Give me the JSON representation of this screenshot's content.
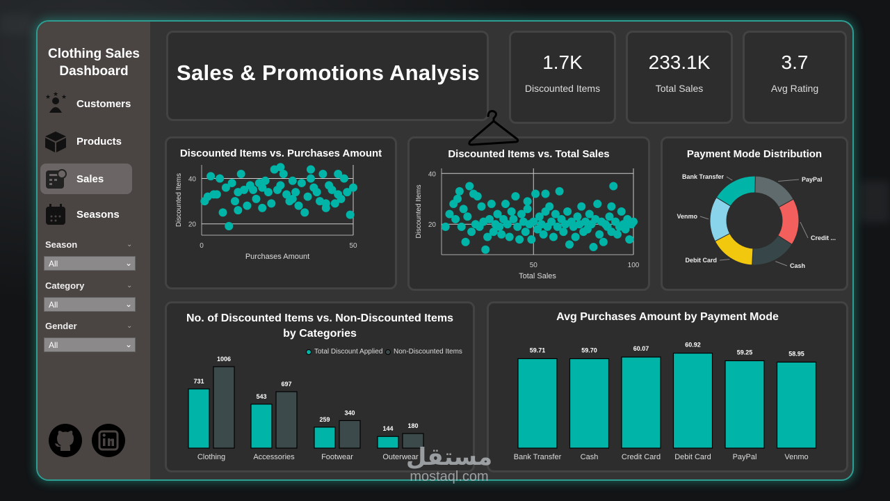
{
  "sidebar": {
    "title_line1": "Clothing Sales",
    "title_line2": "Dashboard",
    "nav": [
      {
        "label": "Customers",
        "icon": "customers-icon",
        "active": false
      },
      {
        "label": "Products",
        "icon": "box-icon",
        "active": false
      },
      {
        "label": "Sales",
        "icon": "sales-icon",
        "active": true
      },
      {
        "label": "Seasons",
        "icon": "calendar-icon",
        "active": false
      }
    ],
    "filters": [
      {
        "label": "Season",
        "value": "All"
      },
      {
        "label": "Category",
        "value": "All"
      },
      {
        "label": "Gender",
        "value": "All"
      }
    ],
    "social": [
      "github-icon",
      "linkedin-icon"
    ]
  },
  "header": {
    "title": "Sales & Promotions Analysis"
  },
  "kpis": [
    {
      "value": "1.7K",
      "label": "Discounted Items"
    },
    {
      "value": "233.1K",
      "label": "Total Sales"
    },
    {
      "value": "3.7",
      "label": "Avg Rating"
    }
  ],
  "colors": {
    "accent": "#00b5a8",
    "secondary": "#3c4a4c",
    "card": "#2d2d2d"
  },
  "chart_data": [
    {
      "type": "scatter",
      "title": "Discounted Items vs. Purchases Amount",
      "xlabel": "Purchases Amount",
      "ylabel": "Discounted Items",
      "xticks": [
        "0",
        "50"
      ],
      "yticks": [
        "20",
        "40"
      ],
      "xlim": [
        0,
        50
      ],
      "ylim": [
        15,
        46
      ],
      "points": [
        [
          1,
          30
        ],
        [
          2,
          32
        ],
        [
          3,
          41
        ],
        [
          4,
          33
        ],
        [
          5,
          33
        ],
        [
          6,
          40
        ],
        [
          7,
          25
        ],
        [
          8,
          36
        ],
        [
          9,
          19
        ],
        [
          10,
          38
        ],
        [
          11,
          30
        ],
        [
          12,
          34
        ],
        [
          13,
          42
        ],
        [
          14,
          35
        ],
        [
          15,
          28
        ],
        [
          16,
          37
        ],
        [
          17,
          35
        ],
        [
          18,
          31
        ],
        [
          19,
          38
        ],
        [
          20,
          27
        ],
        [
          21,
          39
        ],
        [
          22,
          34
        ],
        [
          23,
          29
        ],
        [
          24,
          44
        ],
        [
          25,
          35
        ],
        [
          26,
          37
        ],
        [
          27,
          42
        ],
        [
          28,
          33
        ],
        [
          29,
          30
        ],
        [
          30,
          39
        ],
        [
          31,
          34
        ],
        [
          32,
          28
        ],
        [
          33,
          38
        ],
        [
          34,
          25
        ],
        [
          35,
          32
        ],
        [
          36,
          40
        ],
        [
          37,
          36
        ],
        [
          38,
          34
        ],
        [
          39,
          30
        ],
        [
          40,
          42
        ],
        [
          41,
          27
        ],
        [
          42,
          37
        ],
        [
          43,
          35
        ],
        [
          44,
          29
        ],
        [
          45,
          33
        ],
        [
          46,
          31
        ],
        [
          47,
          40
        ],
        [
          48,
          34
        ],
        [
          49,
          24
        ],
        [
          50,
          36
        ],
        [
          26,
          45
        ],
        [
          36,
          44
        ],
        [
          45,
          42
        ],
        [
          12,
          26
        ],
        [
          20,
          36
        ],
        [
          30,
          31
        ],
        [
          41,
          29
        ]
      ]
    },
    {
      "type": "scatter",
      "title": "Discounted Items vs. Total Sales",
      "xlabel": "Total Sales",
      "ylabel": "Discounted Items",
      "xticks": [
        "50",
        "100"
      ],
      "yticks": [
        "20",
        "40"
      ],
      "xlim": [
        4,
        100
      ],
      "ylim": [
        8,
        42
      ],
      "points": [
        [
          6,
          19
        ],
        [
          8,
          24
        ],
        [
          10,
          28
        ],
        [
          11,
          22
        ],
        [
          12,
          30
        ],
        [
          14,
          19
        ],
        [
          15,
          26
        ],
        [
          16,
          13
        ],
        [
          17,
          23
        ],
        [
          19,
          17
        ],
        [
          20,
          32
        ],
        [
          21,
          20
        ],
        [
          22,
          31
        ],
        [
          23,
          19
        ],
        [
          24,
          27
        ],
        [
          25,
          21
        ],
        [
          26,
          10
        ],
        [
          27,
          15
        ],
        [
          28,
          22
        ],
        [
          29,
          28
        ],
        [
          30,
          17
        ],
        [
          31,
          20
        ],
        [
          32,
          24
        ],
        [
          33,
          19
        ],
        [
          34,
          16
        ],
        [
          35,
          22
        ],
        [
          36,
          28
        ],
        [
          37,
          20
        ],
        [
          38,
          15
        ],
        [
          39,
          25
        ],
        [
          40,
          22
        ],
        [
          41,
          31
        ],
        [
          42,
          19
        ],
        [
          43,
          14
        ],
        [
          44,
          24
        ],
        [
          45,
          21
        ],
        [
          46,
          17
        ],
        [
          47,
          26
        ],
        [
          48,
          20
        ],
        [
          49,
          14
        ],
        [
          50,
          21
        ],
        [
          51,
          32
        ],
        [
          52,
          18
        ],
        [
          53,
          23
        ],
        [
          54,
          20
        ],
        [
          55,
          16
        ],
        [
          56,
          25
        ],
        [
          57,
          19
        ],
        [
          58,
          27
        ],
        [
          59,
          21
        ],
        [
          60,
          15
        ],
        [
          61,
          24
        ],
        [
          62,
          19
        ],
        [
          63,
          33
        ],
        [
          64,
          22
        ],
        [
          65,
          17
        ],
        [
          66,
          20
        ],
        [
          67,
          25
        ],
        [
          68,
          12
        ],
        [
          69,
          21
        ],
        [
          70,
          19
        ],
        [
          71,
          15
        ],
        [
          72,
          23
        ],
        [
          73,
          20
        ],
        [
          74,
          27
        ],
        [
          75,
          17
        ],
        [
          76,
          21
        ],
        [
          77,
          18
        ],
        [
          78,
          24
        ],
        [
          79,
          20
        ],
        [
          80,
          11
        ],
        [
          81,
          22
        ],
        [
          82,
          28
        ],
        [
          83,
          16
        ],
        [
          84,
          21
        ],
        [
          85,
          13
        ],
        [
          86,
          20
        ],
        [
          87,
          19
        ],
        [
          88,
          23
        ],
        [
          89,
          17
        ],
        [
          90,
          35
        ],
        [
          91,
          21
        ],
        [
          92,
          16
        ],
        [
          93,
          19
        ],
        [
          94,
          25
        ],
        [
          95,
          20
        ],
        [
          96,
          18
        ],
        [
          97,
          22
        ],
        [
          98,
          14
        ],
        [
          99,
          20
        ],
        [
          100,
          21
        ],
        [
          13,
          33
        ],
        [
          18,
          35
        ],
        [
          47,
          29
        ],
        [
          56,
          32
        ],
        [
          89,
          27
        ]
      ]
    },
    {
      "type": "pie",
      "title": "Payment Mode Distribution",
      "categories": [
        "PayPal",
        "Credit Card",
        "Cash",
        "Debit Card",
        "Venmo",
        "Bank Transfer"
      ],
      "slice_labels": [
        "PayPal",
        "Credit ...",
        "Cash",
        "Debit Card",
        "Venmo",
        "Bank Transfer"
      ],
      "values": [
        16.7,
        17.0,
        16.8,
        16.5,
        16.4,
        16.6
      ],
      "colors": [
        "#5f6b6d",
        "#f25f5c",
        "#374649",
        "#f2c80f",
        "#8ad4eb",
        "#00b5a8"
      ]
    },
    {
      "type": "bar",
      "title_line1": "No. of Discounted Items vs. Non-Discounted Items",
      "title_line2": "by Categories",
      "categories": [
        "Clothing",
        "Accessories",
        "Footwear",
        "Outerwear"
      ],
      "series": [
        {
          "name": "Total Discount Applied",
          "values": [
            731,
            543,
            259,
            144
          ],
          "color": "#00b5a8"
        },
        {
          "name": "Non-Discounted Items",
          "values": [
            1006,
            697,
            340,
            180
          ],
          "color": "#3c4a4c"
        }
      ],
      "ylim": [
        0,
        1100
      ]
    },
    {
      "type": "bar",
      "title": "Avg Purchases Amount by Payment Mode",
      "categories": [
        "Bank Transfer",
        "Cash",
        "Credit Card",
        "Debit Card",
        "PayPal",
        "Venmo"
      ],
      "values": [
        59.71,
        59.7,
        60.07,
        60.92,
        59.25,
        58.95
      ],
      "value_labels": [
        "59.71",
        "59.70",
        "60.07",
        "60.92",
        "59.25",
        "58.95"
      ],
      "ylim": [
        0,
        63
      ]
    }
  ],
  "watermark": {
    "arabic": "مستقل",
    "latin": "mostaql.com"
  }
}
